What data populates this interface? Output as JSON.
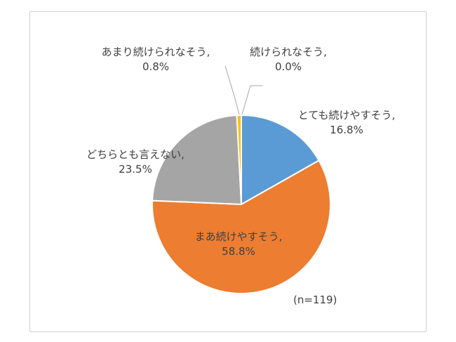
{
  "chart_data": {
    "type": "pie",
    "slices": [
      {
        "label": "とても続けやすそう,",
        "value": 16.8,
        "value_label": "16.8%",
        "color": "#5b9bd5"
      },
      {
        "label": "まあ続けやすそう,",
        "value": 58.8,
        "value_label": "58.8%",
        "color": "#ed7d31"
      },
      {
        "label": "どちらとも言えない,",
        "value": 23.5,
        "value_label": "23.5%",
        "color": "#a5a5a5"
      },
      {
        "label": "あまり続けられなそう,",
        "value": 0.8,
        "value_label": "0.8%",
        "color": "#ffc000"
      },
      {
        "label": "続けられなそう,",
        "value": 0.0,
        "value_label": "0.0%",
        "color": "#4472c4"
      }
    ],
    "note": "(n=119)"
  }
}
